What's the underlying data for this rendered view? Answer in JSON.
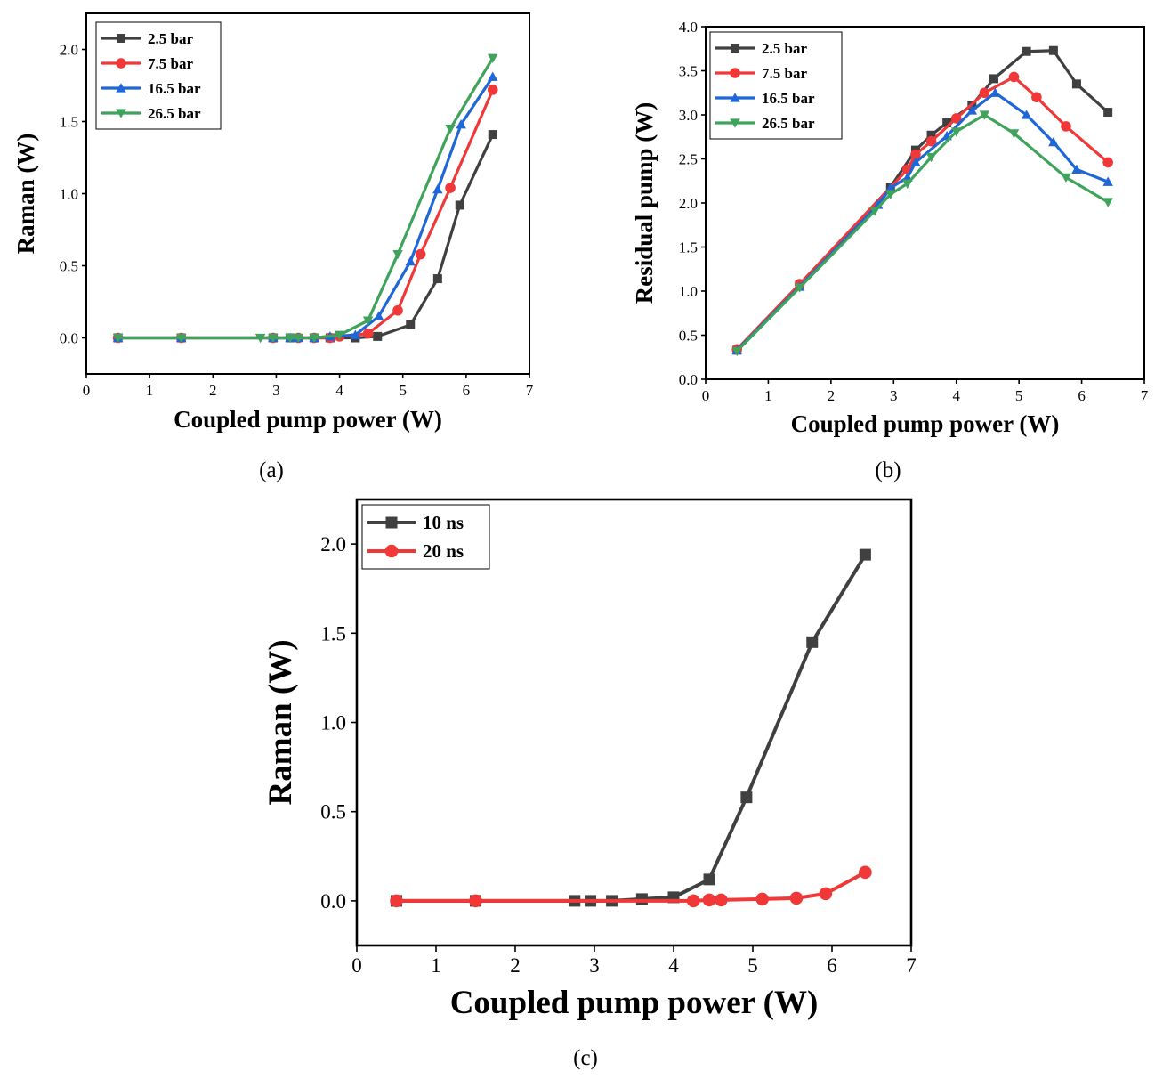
{
  "chart_data": [
    {
      "panel": "a",
      "caption": "(a)",
      "type": "line",
      "xlabel": "Coupled pump power (W)",
      "ylabel": "Raman (W)",
      "xlim": [
        0,
        7
      ],
      "ylim": [
        -0.25,
        2.25
      ],
      "xticks": [
        "0",
        "1",
        "2",
        "3",
        "4",
        "5",
        "6",
        "7"
      ],
      "yticks": [
        "0.0",
        "0.5",
        "1.0",
        "1.5",
        "2.0"
      ],
      "legend_position": "top-left",
      "series": [
        {
          "name": "2.5 bar",
          "color": "#404040",
          "marker": "square",
          "x": [
            0.5,
            1.5,
            2.95,
            3.22,
            3.6,
            3.85,
            4.25,
            4.6,
            5.12,
            5.55,
            5.9,
            6.42
          ],
          "y": [
            0,
            0,
            0,
            0,
            0,
            0,
            0,
            0.01,
            0.09,
            0.41,
            0.92,
            1.41
          ]
        },
        {
          "name": "7.5 bar",
          "color": "#f03838",
          "marker": "circle",
          "x": [
            0.5,
            1.5,
            2.95,
            3.35,
            3.6,
            3.85,
            4.0,
            4.45,
            4.92,
            5.28,
            5.75,
            6.42
          ],
          "y": [
            0,
            0,
            0,
            0,
            0,
            0,
            0.01,
            0.03,
            0.19,
            0.58,
            1.04,
            1.72
          ]
        },
        {
          "name": "16.5 bar",
          "color": "#1f67d8",
          "marker": "triangle-up",
          "x": [
            0.5,
            1.5,
            2.95,
            3.22,
            3.35,
            3.6,
            3.85,
            4.25,
            4.62,
            5.12,
            5.55,
            5.92,
            6.42
          ],
          "y": [
            0,
            0,
            0,
            0,
            0,
            0,
            0.01,
            0.02,
            0.15,
            0.53,
            1.03,
            1.48,
            1.81
          ]
        },
        {
          "name": "26.5 bar",
          "color": "#3fa35b",
          "marker": "triangle-down",
          "x": [
            0.5,
            1.5,
            2.75,
            2.95,
            3.22,
            3.35,
            3.6,
            4.0,
            4.45,
            4.92,
            5.75,
            6.42
          ],
          "y": [
            0,
            0,
            0,
            0,
            0,
            0,
            0,
            0.02,
            0.12,
            0.58,
            1.45,
            1.94
          ]
        }
      ]
    },
    {
      "panel": "b",
      "caption": "(b)",
      "type": "line",
      "xlabel": "Coupled pump power (W)",
      "ylabel": "Residual pump (W)",
      "xlim": [
        0,
        7
      ],
      "ylim": [
        0,
        4.0
      ],
      "xticks": [
        "0",
        "1",
        "2",
        "3",
        "4",
        "5",
        "6",
        "7"
      ],
      "yticks": [
        "0.0",
        "0.5",
        "1.0",
        "1.5",
        "2.0",
        "2.5",
        "3.0",
        "3.5",
        "4.0"
      ],
      "legend_position": "top-left",
      "series": [
        {
          "name": "2.5 bar",
          "color": "#404040",
          "marker": "square",
          "x": [
            0.5,
            1.5,
            2.95,
            3.35,
            3.6,
            3.85,
            4.25,
            4.6,
            5.12,
            5.55,
            5.92,
            6.42
          ],
          "y": [
            0.33,
            1.07,
            2.18,
            2.6,
            2.77,
            2.91,
            3.11,
            3.41,
            3.72,
            3.73,
            3.35,
            3.03
          ]
        },
        {
          "name": "7.5 bar",
          "color": "#f03838",
          "marker": "circle",
          "x": [
            0.5,
            1.5,
            3.22,
            3.35,
            3.6,
            4.0,
            4.45,
            4.92,
            5.28,
            5.75,
            6.42
          ],
          "y": [
            0.34,
            1.08,
            2.38,
            2.55,
            2.7,
            2.96,
            3.25,
            3.43,
            3.2,
            2.87,
            2.46
          ]
        },
        {
          "name": "16.5 bar",
          "color": "#1f67d8",
          "marker": "triangle-up",
          "x": [
            0.5,
            1.5,
            2.75,
            2.95,
            3.22,
            3.35,
            3.85,
            4.25,
            4.62,
            5.12,
            5.55,
            5.92,
            6.42
          ],
          "y": [
            0.33,
            1.05,
            1.98,
            2.17,
            2.29,
            2.46,
            2.76,
            3.05,
            3.25,
            3.0,
            2.69,
            2.38,
            2.24
          ]
        },
        {
          "name": "26.5 bar",
          "color": "#3fa35b",
          "marker": "triangle-down",
          "x": [
            0.5,
            1.5,
            2.7,
            2.95,
            3.22,
            3.6,
            4.0,
            4.45,
            4.92,
            5.75,
            6.42
          ],
          "y": [
            0.32,
            1.04,
            1.91,
            2.1,
            2.22,
            2.52,
            2.81,
            3.0,
            2.79,
            2.29,
            2.01
          ]
        }
      ]
    },
    {
      "panel": "c",
      "caption": "(c)",
      "type": "line",
      "xlabel": "Coupled pump power (W)",
      "ylabel": "Raman (W)",
      "xlim": [
        0,
        7
      ],
      "ylim": [
        -0.25,
        2.25
      ],
      "xticks": [
        "0",
        "1",
        "2",
        "3",
        "4",
        "5",
        "6",
        "7"
      ],
      "yticks": [
        "0.0",
        "0.5",
        "1.0",
        "1.5",
        "2.0"
      ],
      "legend_position": "top-left",
      "series": [
        {
          "name": "10 ns",
          "color": "#404040",
          "marker": "square",
          "x": [
            0.5,
            1.5,
            2.75,
            2.95,
            3.22,
            3.6,
            4.0,
            4.45,
            4.92,
            5.75,
            6.42
          ],
          "y": [
            0,
            0,
            0,
            0,
            0,
            0.01,
            0.02,
            0.12,
            0.58,
            1.45,
            1.94
          ]
        },
        {
          "name": "20 ns",
          "color": "#f03838",
          "marker": "circle",
          "x": [
            0.5,
            1.5,
            4.25,
            4.45,
            4.6,
            5.12,
            5.55,
            5.92,
            6.42
          ],
          "y": [
            0,
            0,
            0,
            0.005,
            0.005,
            0.01,
            0.015,
            0.04,
            0.16
          ]
        }
      ]
    }
  ]
}
